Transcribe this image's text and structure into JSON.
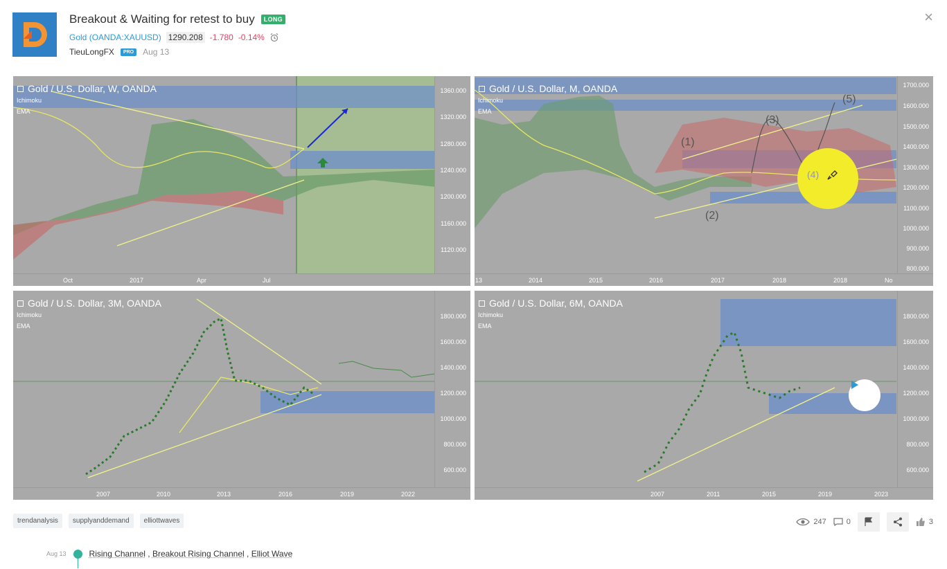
{
  "header": {
    "title": "Breakout & Waiting for retest to buy",
    "badge": "LONG",
    "symbol_name": "Gold",
    "symbol_ticker": "(OANDA:XAUUSD)",
    "price": "1290.208",
    "change": "-1.780",
    "change_pct": "-0.14%",
    "author": "TieuLongFX",
    "author_badge": "PRO",
    "date": "Aug 13",
    "close_label": "×"
  },
  "colors": {
    "accent": "#2a9bd8",
    "long": "#33b16c",
    "down": "#e0435f",
    "chart_bg": "#a9a9a9"
  },
  "charts": [
    {
      "title": "Gold / U.S. Dollar, W, OANDA",
      "indicators": [
        "Ichimoku",
        "EMA"
      ],
      "y_ticks": [
        "1360.000",
        "1320.000",
        "1280.000",
        "1240.000",
        "1200.000",
        "1160.000",
        "1120.000"
      ],
      "x_ticks": [
        "Oct",
        "2017",
        "Apr",
        "Jul"
      ]
    },
    {
      "title": "Gold / U.S. Dollar, M, OANDA",
      "indicators": [
        "Ichimoku",
        "EMA"
      ],
      "y_ticks": [
        "1700.000",
        "1600.000",
        "1500.000",
        "1400.000",
        "1300.000",
        "1200.000",
        "1100.000",
        "1000.000",
        "900.000",
        "800.000"
      ],
      "x_ticks": [
        "13",
        "2014",
        "2015",
        "2016",
        "2017",
        "2018",
        "2018",
        "No"
      ],
      "wave_labels": [
        "(1)",
        "(2)",
        "(3)",
        "(4)",
        "(5)"
      ]
    },
    {
      "title": "Gold / U.S. Dollar, 3M, OANDA",
      "indicators": [
        "Ichimoku",
        "EMA"
      ],
      "y_ticks": [
        "1800.000",
        "1600.000",
        "1400.000",
        "1200.000",
        "1000.000",
        "800.000",
        "600.000"
      ],
      "x_ticks": [
        "2007",
        "2010",
        "2013",
        "2016",
        "2019",
        "2022"
      ]
    },
    {
      "title": "Gold / U.S. Dollar, 6M, OANDA",
      "indicators": [
        "Ichimoku",
        "EMA"
      ],
      "y_ticks": [
        "1800.000",
        "1600.000",
        "1400.000",
        "1200.000",
        "1000.000",
        "800.000",
        "600.000"
      ],
      "x_ticks": [
        "2007",
        "2011",
        "2015",
        "2019",
        "2023"
      ]
    }
  ],
  "tags": [
    "trendanalysis",
    "supplyanddemand",
    "elliottwaves"
  ],
  "stats": {
    "views": "247",
    "comments": "0",
    "likes": "3"
  },
  "update": {
    "date": "Aug 13",
    "part1": "Rising Channel",
    "sep1": " , ",
    "part2": "Breakout Rising Channel",
    "sep2": " , ",
    "part3": "Elliot Wave"
  }
}
